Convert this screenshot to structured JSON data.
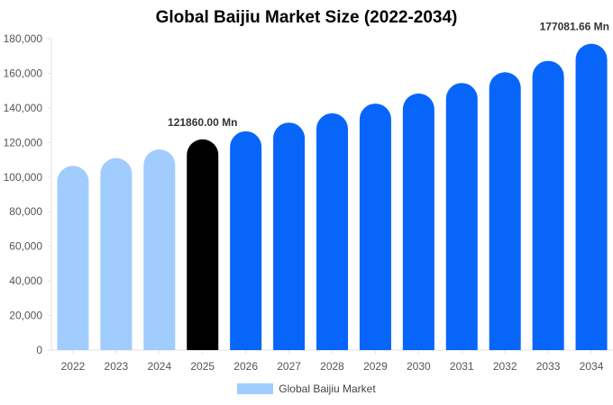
{
  "chart_data": {
    "type": "bar",
    "title": "Global Baijiu Market Size (2022-2034)",
    "xlabel": "",
    "ylabel": "",
    "categories": [
      "2022",
      "2023",
      "2024",
      "2025",
      "2026",
      "2027",
      "2028",
      "2029",
      "2030",
      "2031",
      "2032",
      "2033",
      "2034"
    ],
    "series": [
      {
        "name": "Global Baijiu Market",
        "values": [
          106500,
          111000,
          116000,
          121860,
          126500,
          131500,
          136900,
          142500,
          148300,
          154400,
          160600,
          167200,
          177081.66
        ]
      }
    ],
    "ylim": [
      0,
      180000
    ],
    "yticks": [
      0,
      20000,
      40000,
      60000,
      80000,
      100000,
      120000,
      140000,
      160000,
      180000
    ],
    "ytick_labels": [
      "0",
      "20,000",
      "40,000",
      "60,000",
      "80,000",
      "100,000",
      "120,000",
      "140,000",
      "160,000",
      "180,000"
    ],
    "annotations": [
      {
        "category": "2025",
        "text": "121860.00 Mn"
      },
      {
        "category": "2034",
        "text": "177081.66 Mn"
      }
    ],
    "bar_colors": [
      "#a0cdfd",
      "#a0cdfd",
      "#a0cdfd",
      "#000000",
      "#0765fa",
      "#0765fa",
      "#0765fa",
      "#0765fa",
      "#0765fa",
      "#0765fa",
      "#0765fa",
      "#0765fa",
      "#0765fa"
    ],
    "legend": {
      "position": "bottom",
      "label": "Global Baijiu Market",
      "color": "#a0cdfd"
    },
    "grid": false
  }
}
